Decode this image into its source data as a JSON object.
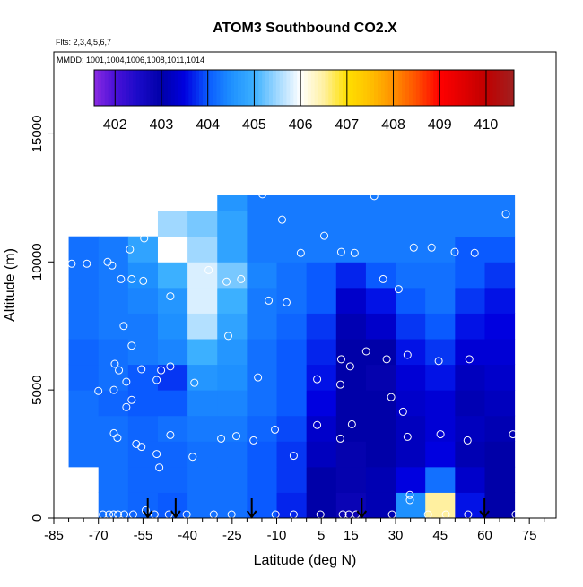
{
  "chart_data": {
    "type": "heatmap",
    "title": "ATOM3 Southbound CO2.X",
    "subtitle": "Flts: 2,3,4,5,6,7",
    "annotation": "MMDD: 1001,1004,1006,1008,1011,1014",
    "xlabel": "Latitude (deg N)",
    "ylabel": "Altitude (m)",
    "xlim": [
      -85,
      84
    ],
    "ylim": [
      0,
      18200
    ],
    "xticks": [
      -85,
      -70,
      -55,
      -40,
      -25,
      -10,
      5,
      15,
      30,
      45,
      60,
      75
    ],
    "xminor_ticks": [
      -80,
      -75,
      -65,
      -60,
      -50,
      -45,
      -35,
      -30,
      -20,
      -15,
      -5,
      0,
      10,
      20,
      25,
      35,
      40,
      50,
      55,
      65,
      70,
      80
    ],
    "yticks": [
      0,
      5000,
      10000,
      15000
    ],
    "x_edges": [
      -80,
      -70,
      -60,
      -50,
      -40,
      -30,
      -20,
      -10,
      0,
      10,
      20,
      30,
      40,
      50,
      60,
      70
    ],
    "y_edges": [
      0,
      1000,
      2000,
      3000,
      4000,
      5000,
      6000,
      7000,
      8000,
      9000,
      10000,
      11000,
      12000,
      12600
    ],
    "z": [
      [
        null,
        404.2,
        404.1,
        404.0,
        404.2,
        404.2,
        404.0,
        403.7,
        403.0,
        402.8,
        403.1,
        404.5,
        406.5,
        403.6,
        403.0
      ],
      [
        null,
        404.2,
        404.1,
        404.1,
        404.2,
        404.2,
        404.0,
        403.8,
        403.0,
        402.9,
        403.1,
        403.5,
        404.2,
        403.3,
        403.0
      ],
      [
        404.2,
        404.2,
        404.1,
        404.1,
        404.2,
        404.2,
        404.0,
        403.8,
        403.2,
        402.9,
        403.0,
        403.2,
        403.5,
        403.1,
        403.0
      ],
      [
        404.2,
        404.2,
        404.1,
        404.2,
        404.3,
        404.3,
        404.1,
        403.9,
        403.3,
        403.0,
        403.0,
        403.2,
        403.4,
        403.2,
        403.1
      ],
      [
        404.2,
        404.1,
        404.0,
        404.0,
        404.4,
        404.4,
        404.2,
        404.0,
        403.5,
        403.0,
        403.0,
        403.3,
        403.4,
        403.1,
        403.2
      ],
      [
        404.1,
        404.2,
        404.0,
        403.8,
        404.6,
        404.5,
        404.2,
        404.0,
        403.6,
        403.0,
        402.9,
        403.4,
        403.6,
        403.2,
        403.3
      ],
      [
        404.1,
        404.2,
        404.3,
        404.4,
        405.0,
        404.6,
        404.2,
        404.0,
        403.7,
        403.0,
        403.0,
        403.6,
        403.8,
        403.4,
        403.4
      ],
      [
        404.2,
        404.3,
        404.3,
        404.5,
        405.6,
        404.8,
        404.3,
        404.1,
        403.8,
        403.1,
        403.3,
        403.8,
        404.0,
        403.6,
        403.5
      ],
      [
        404.2,
        404.3,
        404.4,
        404.6,
        405.8,
        405.0,
        404.3,
        404.2,
        404.0,
        403.3,
        403.6,
        404.0,
        404.2,
        403.8,
        403.6
      ],
      [
        404.2,
        404.3,
        404.5,
        405.0,
        405.8,
        405.3,
        404.4,
        404.2,
        404.0,
        403.7,
        404.0,
        404.2,
        404.2,
        404.0,
        403.8
      ],
      [
        404.2,
        404.3,
        404.8,
        406.0,
        405.5,
        404.8,
        404.3,
        404.3,
        404.3,
        404.3,
        404.3,
        404.3,
        404.3,
        404.0,
        404.0
      ],
      [
        null,
        null,
        null,
        405.5,
        405.3,
        404.8,
        404.3,
        404.3,
        404.3,
        404.3,
        404.3,
        404.3,
        404.3,
        404.3,
        404.3
      ],
      [
        null,
        null,
        null,
        null,
        null,
        404.6,
        404.3,
        404.3,
        404.3,
        404.3,
        404.3,
        404.3,
        404.3,
        404.3,
        404.3
      ]
    ],
    "colorscale": [
      {
        "value": 401.55,
        "color": "#8a2be2"
      },
      {
        "value": 402,
        "color": "#4a10d8"
      },
      {
        "value": 402.5,
        "color": "#1a0ac8"
      },
      {
        "value": 403,
        "color": "#0000a8"
      },
      {
        "value": 403.5,
        "color": "#0000e0"
      },
      {
        "value": 404,
        "color": "#0a5aff"
      },
      {
        "value": 404.5,
        "color": "#1e90ff"
      },
      {
        "value": 405,
        "color": "#3cb0ff"
      },
      {
        "value": 405.5,
        "color": "#a0d8ff"
      },
      {
        "value": 406,
        "color": "#ffffff"
      },
      {
        "value": 406.5,
        "color": "#fff0a0"
      },
      {
        "value": 407,
        "color": "#ffe000"
      },
      {
        "value": 407.5,
        "color": "#ffc000"
      },
      {
        "value": 408,
        "color": "#ff9000"
      },
      {
        "value": 408.5,
        "color": "#ff5000"
      },
      {
        "value": 409,
        "color": "#ff0000"
      },
      {
        "value": 409.5,
        "color": "#e00000"
      },
      {
        "value": 410,
        "color": "#c00000"
      },
      {
        "value": 410.6,
        "color": "#a02020"
      }
    ],
    "colorbar_lim": [
      401.55,
      410.6
    ],
    "colorbar_ticks": [
      402,
      403,
      404,
      405,
      406,
      407,
      408,
      409,
      410
    ],
    "points": {
      "color": "#ffffff",
      "x": [
        -79,
        -73.9,
        -66.9,
        -65.4,
        -62.4,
        -58.8,
        -54.9,
        -59.4,
        -54.6,
        -45.8,
        -32.9,
        -26.9,
        -22,
        -26.3,
        -12.7,
        -6.7,
        -8.2,
        -14.8,
        6,
        -1.9,
        11.7,
        16.2,
        22.8,
        25.8,
        31,
        36.1,
        42.1,
        49.9,
        56.6,
        67.1,
        -61.5,
        -58.8,
        -64.5,
        -63.1,
        -70,
        -64.8,
        -60.6,
        -55.5,
        -48.9,
        -45.8,
        -50.4,
        -37.7,
        -58.8,
        -60.6,
        -64.8,
        -63.6,
        -57.3,
        -55.5,
        -45.8,
        -50.4,
        -49.5,
        -38.3,
        -28.7,
        -23.6,
        -17.8,
        -16.3,
        -10.6,
        -4.3,
        3.6,
        3.6,
        11.4,
        11.4,
        15.3,
        11.7,
        14.7,
        20.1,
        27,
        28.5,
        32.5,
        34,
        34,
        45.1,
        44.5,
        54.8,
        54.2,
        69.5,
        -68.5,
        -66.4,
        -64.9,
        -63.4,
        -61.3,
        -58.3,
        -54.1,
        -51.1,
        -46.3,
        -40.3,
        -31.2,
        -25.2,
        -10.4,
        -4.3,
        4.7,
        12.2,
        14.3,
        16.7,
        28.8,
        34.8,
        34.8,
        40.9,
        46.9,
        54.4,
        70.4
      ],
      "y": [
        9930,
        9930,
        10000,
        9860,
        9330,
        9330,
        9260,
        10490,
        10920,
        8660,
        9680,
        9230,
        9330,
        7110,
        8490,
        8420,
        11650,
        12640,
        11020,
        10350,
        10390,
        10350,
        12570,
        9330,
        8940,
        10560,
        10560,
        10390,
        10350,
        11870,
        7500,
        6730,
        6020,
        5770,
        4960,
        5000,
        5320,
        5810,
        5770,
        5920,
        5390,
        5280,
        4610,
        4330,
        3310,
        3130,
        2890,
        2780,
        3240,
        2500,
        1970,
        2390,
        3100,
        3200,
        3030,
        5490,
        3450,
        2430,
        5420,
        3630,
        5210,
        3100,
        3660,
        6200,
        5920,
        6510,
        6200,
        4720,
        4150,
        6370,
        3170,
        3270,
        6130,
        6200,
        3030,
        3270,
        140,
        140,
        140,
        140,
        140,
        140,
        300,
        140,
        140,
        140,
        140,
        140,
        140,
        140,
        140,
        140,
        140,
        140,
        140,
        900,
        700,
        140,
        140,
        140,
        140
      ]
    },
    "arrows_x": [
      -53.4,
      -44,
      -18.4,
      18.6,
      59.9
    ],
    "arrow_color": "#000000"
  }
}
